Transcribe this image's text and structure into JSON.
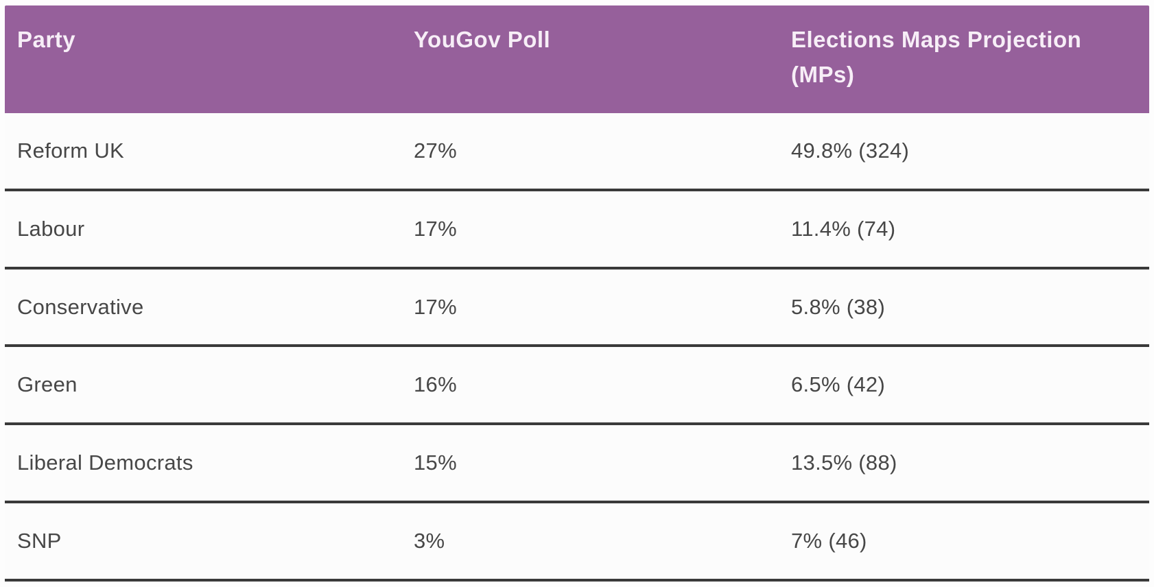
{
  "table": {
    "columns": {
      "party": "Party",
      "yougov": "YouGov Poll",
      "projection": "Elections Maps Projection (MPs)"
    },
    "rows": [
      {
        "party": "Reform UK",
        "yougov": "27%",
        "projection": "49.8% (324)"
      },
      {
        "party": "Labour",
        "yougov": "17%",
        "projection": "11.4% (74)"
      },
      {
        "party": "Conservative",
        "yougov": "17%",
        "projection": "5.8% (38)"
      },
      {
        "party": "Green",
        "yougov": "16%",
        "projection": "6.5% (42)"
      },
      {
        "party": "Liberal Democrats",
        "yougov": "15%",
        "projection": "13.5% (88)"
      },
      {
        "party": "SNP",
        "yougov": "3%",
        "projection": "7% (46)"
      }
    ]
  },
  "colors": {
    "header_bg": "#96609B",
    "header_text": "#F7EEF7",
    "body_text": "#474747",
    "divider": "#3A3A3A",
    "row_bg": "#FCFCFC"
  },
  "chart_data": {
    "type": "table",
    "title": "YouGov Poll vs Elections Maps Projection by Party",
    "columns": [
      "Party",
      "YouGov Poll",
      "Elections Maps Projection (MPs)"
    ],
    "rows": [
      [
        "Reform UK",
        "27%",
        "49.8% (324)"
      ],
      [
        "Labour",
        "17%",
        "11.4% (74)"
      ],
      [
        "Conservative",
        "17%",
        "5.8% (38)"
      ],
      [
        "Green",
        "16%",
        "6.5% (42)"
      ],
      [
        "Liberal Democrats",
        "15%",
        "13.5% (88)"
      ],
      [
        "SNP",
        "3%",
        "7% (46)"
      ]
    ],
    "series": [
      {
        "name": "YouGov Poll (%)",
        "values": [
          27,
          17,
          17,
          16,
          15,
          3
        ]
      },
      {
        "name": "Elections Maps Projection (%)",
        "values": [
          49.8,
          11.4,
          5.8,
          6.5,
          13.5,
          7
        ]
      },
      {
        "name": "Elections Maps Projection (MPs)",
        "values": [
          324,
          74,
          38,
          42,
          88,
          46
        ]
      }
    ],
    "categories": [
      "Reform UK",
      "Labour",
      "Conservative",
      "Green",
      "Liberal Democrats",
      "SNP"
    ]
  }
}
